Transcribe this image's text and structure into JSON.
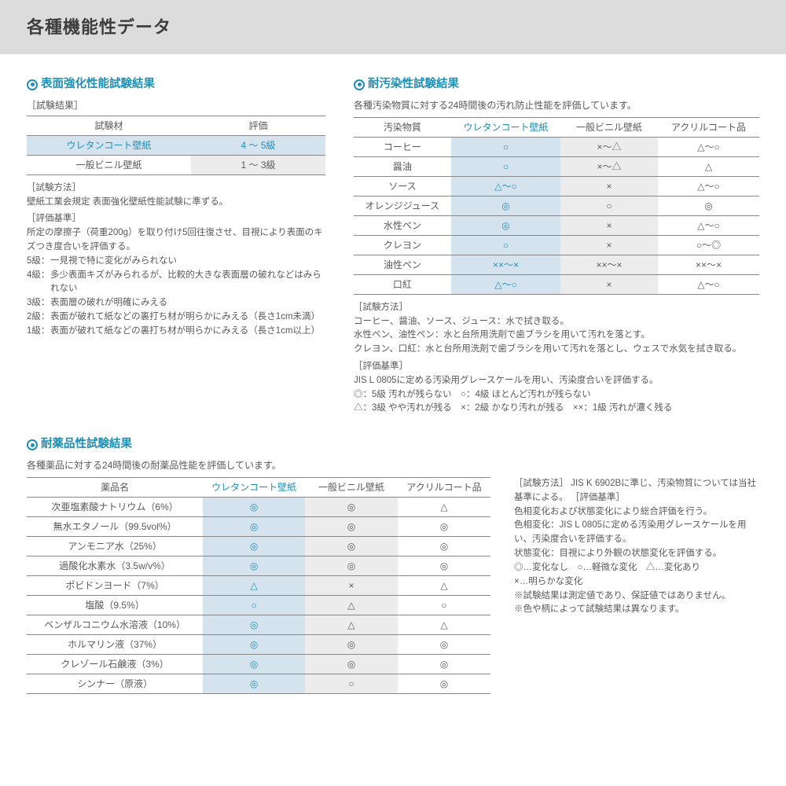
{
  "header": {
    "title": "各種機能性データ"
  },
  "colors": {
    "accent": "#1f8fb8",
    "hl_bg": "#d5e3ee",
    "gray_bg": "#ececec",
    "text": "#5a5a5a",
    "header_bg": "#dcdcdc"
  },
  "section1": {
    "title": "表面強化性能試験結果",
    "sublabel": "［試験結果］",
    "table": {
      "headers": [
        "試験材",
        "評価"
      ],
      "rows": [
        {
          "c0": "ウレタンコート壁紙",
          "c1": "4 ～ 5級",
          "hl": true
        },
        {
          "c0": "一般ビニル壁紙",
          "c1": "1 ～ 3級",
          "hl": false
        }
      ]
    },
    "method_label": "［試験方法］",
    "method_text": "壁紙工業会規定 表面強化壁紙性能試験に準ずる。",
    "criteria_label": "［評価基準］",
    "criteria_text": "所定の摩擦子（荷重200g）を取り付け5回往復させ、目視により表面のキズつき度合いを評価する。",
    "grades": [
      {
        "g": "5級：",
        "t": "一見視で特に変化がみられない"
      },
      {
        "g": "4級：",
        "t": "多少表面キズがみられるが、比較的大きな表面層の破れなどはみられない"
      },
      {
        "g": "3級：",
        "t": "表面層の破れが明確にみえる"
      },
      {
        "g": "2級：",
        "t": "表面が破れて紙などの裏打ち材が明らかにみえる（長さ1cm未満）"
      },
      {
        "g": "1級：",
        "t": "表面が破れて紙などの裏打ち材が明らかにみえる（長さ1cm以上）"
      }
    ]
  },
  "section2": {
    "title": "耐汚染性試験結果",
    "desc": "各種汚染物質に対する24時間後の汚れ防止性能を評価しています。",
    "table": {
      "headers": [
        "汚染物質",
        "ウレタンコート壁紙",
        "一般ビニル壁紙",
        "アクリルコート品"
      ],
      "rows": [
        [
          "コーヒー",
          "○",
          "×～△",
          "△～○"
        ],
        [
          "醤油",
          "○",
          "×～△",
          "△"
        ],
        [
          "ソース",
          "△～○",
          "×",
          "△～○"
        ],
        [
          "オレンジジュース",
          "◎",
          "○",
          "◎"
        ],
        [
          "水性ペン",
          "◎",
          "×",
          "△～○"
        ],
        [
          "クレヨン",
          "○",
          "×",
          "○～◎"
        ],
        [
          "油性ペン",
          "××～×",
          "××～×",
          "××～×"
        ],
        [
          "口紅",
          "△～○",
          "×",
          "△～○"
        ]
      ]
    },
    "method_label": "［試験方法］",
    "method_lines": [
      "コーヒー、醤油、ソース、ジュース：水で拭き取る。",
      "水性ペン、油性ペン：水と台所用洗剤で歯ブラシを用いて汚れを落とす。",
      "クレヨン、口紅：水と台所用洗剤で歯ブラシを用いて汚れを落とし、ウェスで水気を拭き取る。"
    ],
    "criteria_label": "［評価基準］",
    "criteria_lines": [
      "JIS L 0805に定める汚染用グレースケールを用い、汚染度合いを評価する。",
      "◎：5級 汚れが残らない　○：4級 ほとんど汚れが残らない",
      "△：3級 やや汚れが残る　×：2級 かなり汚れが残る　××：1級 汚れが濃く残る"
    ]
  },
  "section3": {
    "title": "耐薬品性試験結果",
    "desc": "各種薬品に対する24時間後の耐薬品性能を評価しています。",
    "table": {
      "headers": [
        "薬品名",
        "ウレタンコート壁紙",
        "一般ビニル壁紙",
        "アクリルコート品"
      ],
      "rows": [
        [
          "次亜塩素酸ナトリウム（6%）",
          "◎",
          "◎",
          "△"
        ],
        [
          "無水エタノール（99.5vol%）",
          "◎",
          "◎",
          "◎"
        ],
        [
          "アンモニア水（25%）",
          "◎",
          "◎",
          "◎"
        ],
        [
          "過酸化水素水（3.5w/v%）",
          "◎",
          "◎",
          "◎"
        ],
        [
          "ポビドンヨード（7%）",
          "△",
          "×",
          "△"
        ],
        [
          "塩酸（9.5%）",
          "○",
          "△",
          "○"
        ],
        [
          "ベンザルコニウム水溶液（10%）",
          "◎",
          "△",
          "△"
        ],
        [
          "ホルマリン液（37%）",
          "◎",
          "◎",
          "◎"
        ],
        [
          "クレゾール石鹸液（3%）",
          "◎",
          "◎",
          "◎"
        ],
        [
          "シンナー（原液）",
          "◎",
          "○",
          "◎"
        ]
      ]
    },
    "notes": {
      "method_label": "［試験方法］",
      "method_text": "JIS K 6902Bに準じ、汚染物質については当社基準による。",
      "criteria_label": "［評価基準］",
      "criteria_lines": [
        "色相変化および状態変化により総合評価を行う。",
        "色相変化：JIS L 0805に定める汚染用グレースケールを用い、汚染度合いを評価する。",
        "状態変化：目視により外観の状態変化を評価する。",
        "◎…変化なし　○…軽微な変化　△…変化あり",
        "×…明らかな変化",
        "※試験結果は測定値であり、保証値ではありません。",
        "※色や柄によって試験結果は異なります。"
      ]
    }
  }
}
